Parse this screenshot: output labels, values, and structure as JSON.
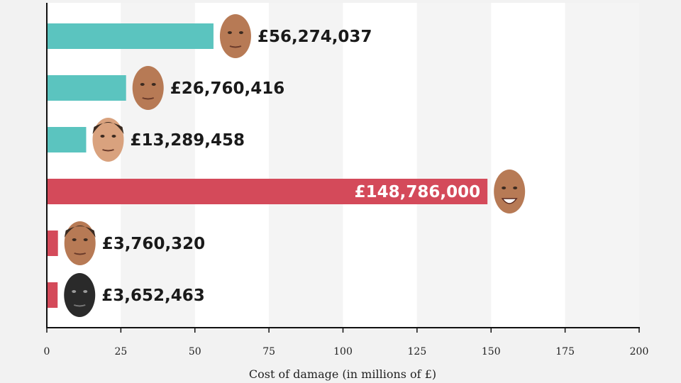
{
  "chart_data": {
    "type": "bar",
    "orientation": "horizontal",
    "xlabel": "Cost of damage (in millions of £)",
    "xlim": [
      0,
      200
    ],
    "xticks": [
      0,
      25,
      50,
      75,
      100,
      125,
      150,
      175,
      200
    ],
    "grid": "alternating vertical bands",
    "bars": [
      {
        "value": 56.274037,
        "label": "£56,274,037",
        "color": "#5bc4bf",
        "face": "bald-man-face-icon"
      },
      {
        "value": 26.760416,
        "label": "£26,760,416",
        "color": "#5bc4bf",
        "face": "bald-man-face-icon"
      },
      {
        "value": 13.289458,
        "label": "£13,289,458",
        "color": "#5bc4bf",
        "face": "short-hair-man-face-icon"
      },
      {
        "value": 148.786,
        "label": "£148,786,000",
        "color": "#d44a5a",
        "face": "laughing-man-face-icon"
      },
      {
        "value": 3.76032,
        "label": "£3,760,320",
        "color": "#d44a5a",
        "face": "dark-hair-man-face-icon"
      },
      {
        "value": 3.652463,
        "label": "£3,652,463",
        "color": "#d44a5a",
        "face": "dark-masked-face-icon"
      }
    ]
  }
}
